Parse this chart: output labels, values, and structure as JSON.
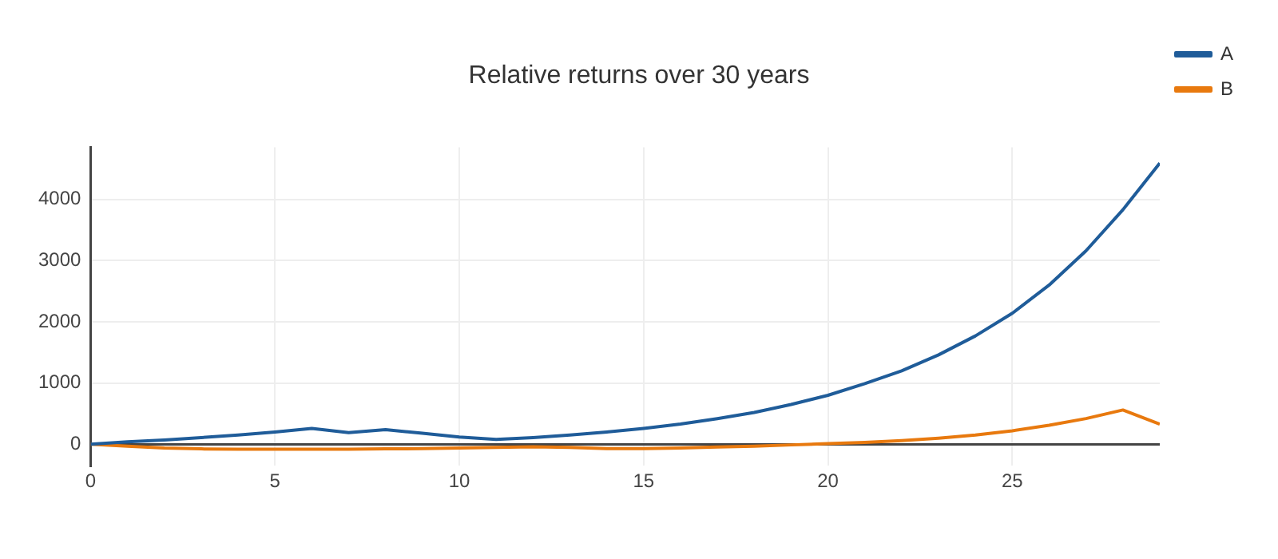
{
  "chart_data": {
    "type": "line",
    "title": "Relative returns over 30 years",
    "x": [
      0,
      1,
      2,
      3,
      4,
      5,
      6,
      7,
      8,
      9,
      10,
      11,
      12,
      13,
      14,
      15,
      16,
      17,
      18,
      19,
      20,
      21,
      22,
      23,
      24,
      25,
      26,
      27,
      28,
      29
    ],
    "series": [
      {
        "name": "A",
        "color": "#1f5c99",
        "values": [
          0,
          40,
          70,
          110,
          150,
          200,
          260,
          190,
          240,
          180,
          120,
          80,
          110,
          150,
          200,
          260,
          330,
          420,
          520,
          650,
          800,
          990,
          1200,
          1460,
          1770,
          2140,
          2600,
          3160,
          3830,
          4590
        ]
      },
      {
        "name": "B",
        "color": "#e8790e",
        "values": [
          0,
          -30,
          -60,
          -75,
          -80,
          -80,
          -80,
          -80,
          -75,
          -70,
          -60,
          -50,
          -40,
          -50,
          -70,
          -70,
          -60,
          -45,
          -30,
          -10,
          10,
          30,
          60,
          100,
          150,
          220,
          310,
          420,
          560,
          330
        ]
      }
    ],
    "xlim": [
      0,
      29
    ],
    "xticks": [
      0,
      5,
      10,
      15,
      20,
      25
    ],
    "ylim": [
      -350,
      4850
    ],
    "yticks": [
      0,
      1000,
      2000,
      3000,
      4000
    ],
    "grid": true,
    "legend": "top right",
    "marker": "none",
    "line_style": "solid"
  }
}
